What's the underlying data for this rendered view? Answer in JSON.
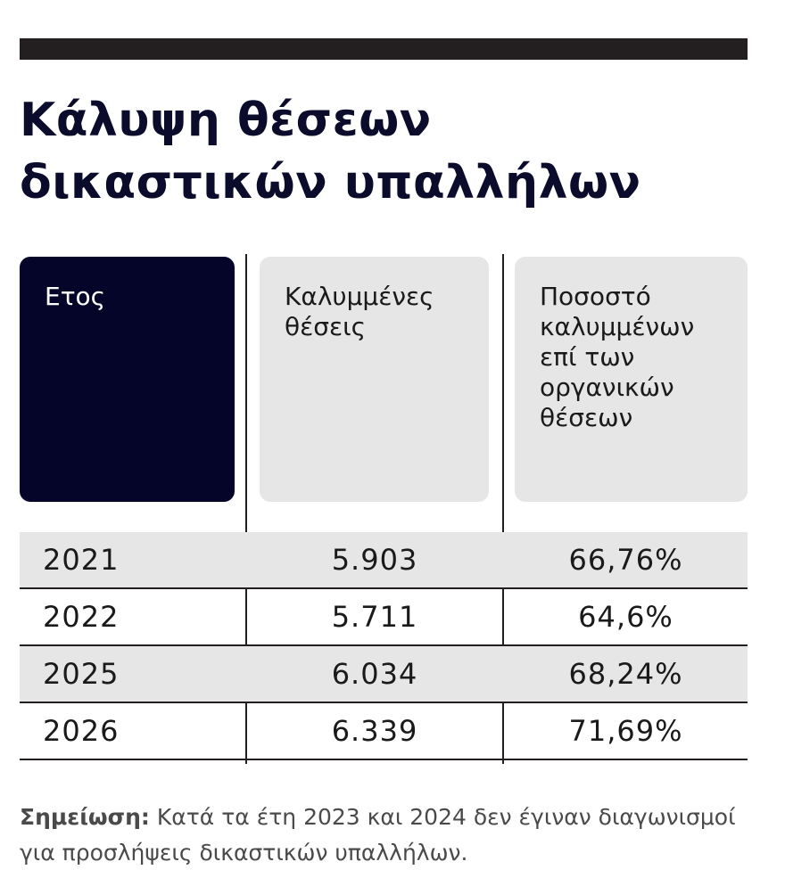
{
  "chart_data": {
    "type": "table",
    "title_lines": [
      "Κάλυψη θέσεων",
      "δικαστικών υπαλλήλων"
    ],
    "columns": [
      "Ετος",
      "Καλυμμένες\nθέσεις",
      "Ποσοστό\nκαλυμμένων\nεπί των\nοργανικών\nθέσεων"
    ],
    "rows": [
      {
        "year": "2021",
        "filled": "5.903",
        "percent": "66,76%"
      },
      {
        "year": "2022",
        "filled": "5.711",
        "percent": "64,6%"
      },
      {
        "year": "2025",
        "filled": "6.034",
        "percent": "68,24%"
      },
      {
        "year": "2026",
        "filled": "6.339",
        "percent": "71,69%"
      }
    ],
    "note_label": "Σημείωση:",
    "note_text": " Κατά τα έτη 2023 και 2024 δεν έγιναν διαγωνισμοί για προσλήψεις δικαστικών υπαλλήλων."
  },
  "colors": {
    "year_header_bg": "#05052a",
    "grey_header_bg": "#e6e6e7",
    "rule": "#231f20",
    "title": "#0b0b2b"
  }
}
